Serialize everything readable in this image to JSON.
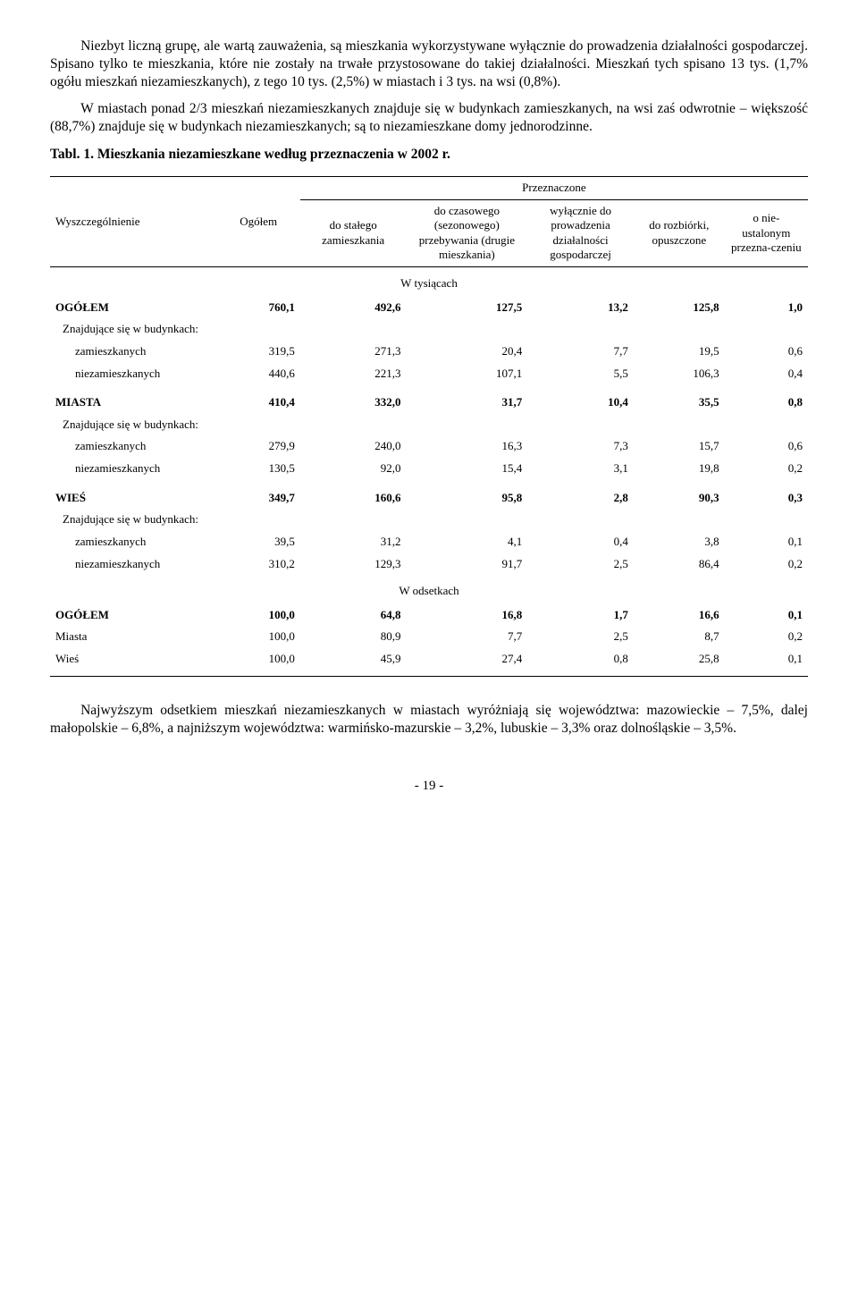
{
  "paragraphs": {
    "p1": "Niezbyt liczną grupę, ale wartą zauważenia, są mieszkania wykorzystywane wyłącznie do prowadzenia działalności gospodarczej. Spisano tylko te mieszkania, które nie zostały na trwałe przystosowane do takiej działalności. Mieszkań tych spisano 13 tys. (1,7% ogółu mieszkań niezamieszkanych), z tego 10 tys. (2,5%) w miastach i 3 tys. na wsi (0,8%).",
    "p2": "W miastach ponad 2/3 mieszkań niezamieszkanych znajduje się w budynkach zamieszkanych, na wsi zaś odwrotnie – większość (88,7%) znajduje się w budynkach niezamieszkanych; są to niezamieszkane domy jednorodzinne.",
    "p3": "Najwyższym odsetkiem mieszkań niezamieszkanych w miastach wyróżniają się województwa: mazowieckie – 7,5%, dalej małopolskie – 6,8%, a najniższym województwa: warmińsko-mazurskie – 3,2%, lubuskie – 3,3% oraz dolnośląskie – 3,5%."
  },
  "table": {
    "title": "Tabl. 1.  Mieszkania niezamieszkane według przeznaczenia w 2002 r.",
    "header": {
      "col_wysz": "Wyszczególnienie",
      "col_ogolem": "Ogółem",
      "super_przez": "Przeznaczone",
      "col_stale": "do stałego zamieszkania",
      "col_czas": "do czasowego (sezonowego) przebywania (drugie mieszkania)",
      "col_dzial": "wyłącznie do prowadzenia działalności gospodarczej",
      "col_rozb": "do rozbiórki, opuszczone",
      "col_nie": "o nie-ustalonym przezna-czeniu"
    },
    "sections": {
      "tys": "W tysiącach",
      "ods": "W odsetkach"
    },
    "rows_tys": [
      {
        "label": "OGÓŁEM",
        "bold": true,
        "vals": [
          "760,1",
          "492,6",
          "127,5",
          "13,2",
          "125,8",
          "1,0"
        ]
      },
      {
        "label": "Znajdujące się w budynkach:",
        "sub": true,
        "vals": [
          "",
          "",
          "",
          "",
          "",
          ""
        ]
      },
      {
        "label": "zamieszkanych",
        "sub2": true,
        "vals": [
          "319,5",
          "271,3",
          "20,4",
          "7,7",
          "19,5",
          "0,6"
        ]
      },
      {
        "label": "niezamieszkanych",
        "sub2": true,
        "vals": [
          "440,6",
          "221,3",
          "107,1",
          "5,5",
          "106,3",
          "0,4"
        ]
      },
      {
        "label": "MIASTA",
        "bold": true,
        "pad": true,
        "vals": [
          "410,4",
          "332,0",
          "31,7",
          "10,4",
          "35,5",
          "0,8"
        ]
      },
      {
        "label": "Znajdujące się w budynkach:",
        "sub": true,
        "vals": [
          "",
          "",
          "",
          "",
          "",
          ""
        ]
      },
      {
        "label": "zamieszkanych",
        "sub2": true,
        "vals": [
          "279,9",
          "240,0",
          "16,3",
          "7,3",
          "15,7",
          "0,6"
        ]
      },
      {
        "label": "niezamieszkanych",
        "sub2": true,
        "vals": [
          "130,5",
          "92,0",
          "15,4",
          "3,1",
          "19,8",
          "0,2"
        ]
      },
      {
        "label": "WIEŚ",
        "bold": true,
        "pad": true,
        "vals": [
          "349,7",
          "160,6",
          "95,8",
          "2,8",
          "90,3",
          "0,3"
        ]
      },
      {
        "label": "Znajdujące się w budynkach:",
        "sub": true,
        "vals": [
          "",
          "",
          "",
          "",
          "",
          ""
        ]
      },
      {
        "label": "zamieszkanych",
        "sub2": true,
        "vals": [
          "39,5",
          "31,2",
          "4,1",
          "0,4",
          "3,8",
          "0,1"
        ]
      },
      {
        "label": "niezamieszkanych",
        "sub2": true,
        "vals": [
          "310,2",
          "129,3",
          "91,7",
          "2,5",
          "86,4",
          "0,2"
        ]
      }
    ],
    "rows_ods": [
      {
        "label": "OGÓŁEM",
        "bold": true,
        "vals": [
          "100,0",
          "64,8",
          "16,8",
          "1,7",
          "16,6",
          "0,1"
        ]
      },
      {
        "label": "Miasta",
        "vals": [
          "100,0",
          "80,9",
          "7,7",
          "2,5",
          "8,7",
          "0,2"
        ]
      },
      {
        "label": "Wieś",
        "last": true,
        "vals": [
          "100,0",
          "45,9",
          "27,4",
          "0,8",
          "25,8",
          "0,1"
        ]
      }
    ]
  },
  "page_number": "- 19 -"
}
